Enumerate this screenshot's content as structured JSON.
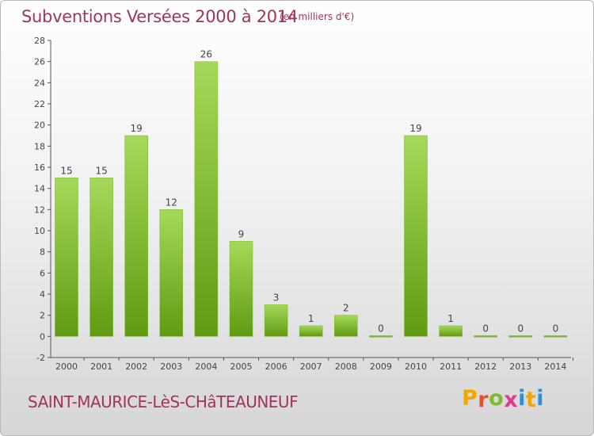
{
  "header": {
    "title": "Subventions Versées 2000 à 2014",
    "unit": "(en milliers d'€)"
  },
  "footer": {
    "town": "SAINT-MAURICE-LèS-CHâTEAUNEUF",
    "logo_letters": [
      "P",
      "r",
      "o",
      "x",
      "i",
      "t",
      "i"
    ],
    "logo_colors": [
      "#f0a800",
      "#e8502a",
      "#7dbb2e",
      "#e03a8e",
      "#2e8fd8",
      "#f0a800",
      "#2e8fd8"
    ]
  },
  "colors": {
    "text": "#a3335d",
    "bar_light": "#a6d95a",
    "bar_dark": "#5f9b12"
  },
  "chart_data": {
    "type": "bar",
    "title": "Subventions Versées 2000 à 2014",
    "categories": [
      "2000",
      "2001",
      "2002",
      "2003",
      "2004",
      "2005",
      "2006",
      "2007",
      "2008",
      "2009",
      "2010",
      "2011",
      "2012",
      "2013",
      "2014"
    ],
    "values": [
      15,
      15,
      19,
      12,
      26,
      9,
      3,
      1,
      2,
      0,
      19,
      1,
      0,
      0,
      0
    ],
    "ylim": [
      -2,
      28
    ],
    "yticks": [
      -2,
      0,
      2,
      4,
      6,
      8,
      10,
      12,
      14,
      16,
      18,
      20,
      22,
      24,
      26,
      28
    ],
    "grid": false,
    "legend": "none"
  }
}
